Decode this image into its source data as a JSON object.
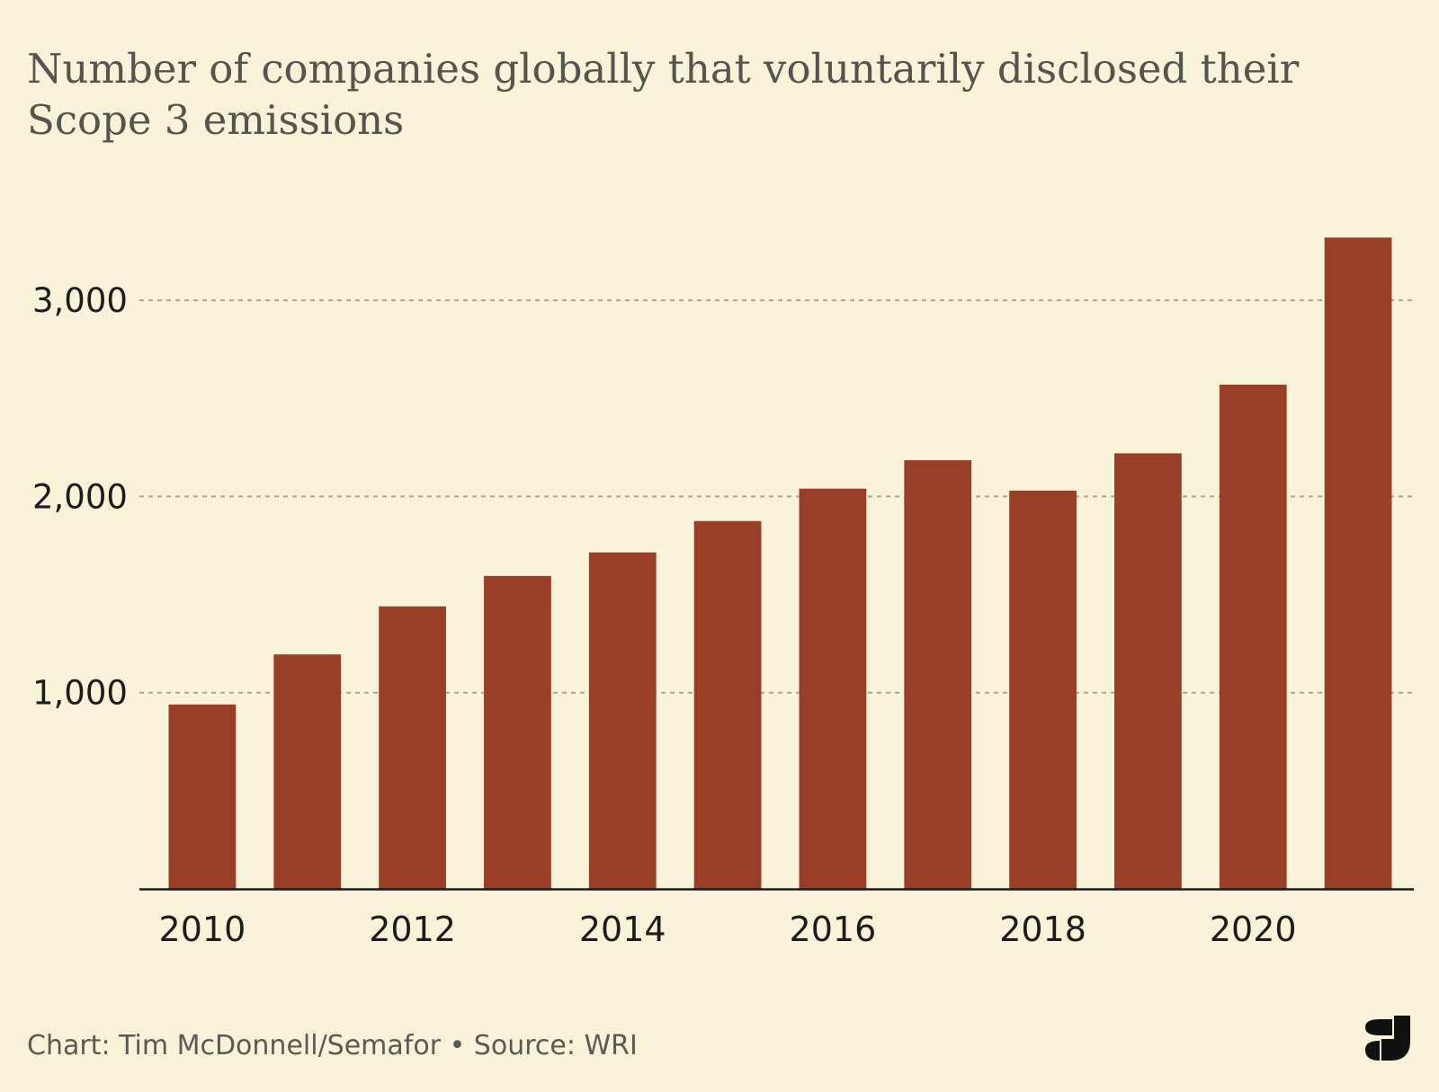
{
  "chart_data": {
    "type": "bar",
    "title": "Number of companies globally that voluntarily disclosed their Scope 3 emissions",
    "categories": [
      "2010",
      "2011",
      "2012",
      "2013",
      "2014",
      "2015",
      "2016",
      "2017",
      "2018",
      "2019",
      "2020",
      "2021"
    ],
    "values": [
      940,
      1195,
      1440,
      1595,
      1715,
      1875,
      2040,
      2185,
      2030,
      2220,
      2570,
      3320
    ],
    "x_tick_labels": [
      "2010",
      "2012",
      "2014",
      "2016",
      "2018",
      "2020"
    ],
    "y_ticks": [
      1000,
      2000,
      3000
    ],
    "y_tick_labels": [
      "1,000",
      "2,000",
      "3,000"
    ],
    "ylim": [
      0,
      3500
    ],
    "xlabel": "",
    "ylabel": "",
    "grid": "horizontal dashed",
    "bar_color": "#993f28"
  },
  "footer": {
    "credit": "Chart: Tim McDonnell/Semafor • Source: WRI"
  },
  "logo": {
    "icon": "semafor-s-logo",
    "letter": "S"
  },
  "colors": {
    "background": "#f8f3d8",
    "bar": "#993f28",
    "grid": "#a8a597",
    "axis": "#1a1a1a",
    "title": "#55554f"
  }
}
